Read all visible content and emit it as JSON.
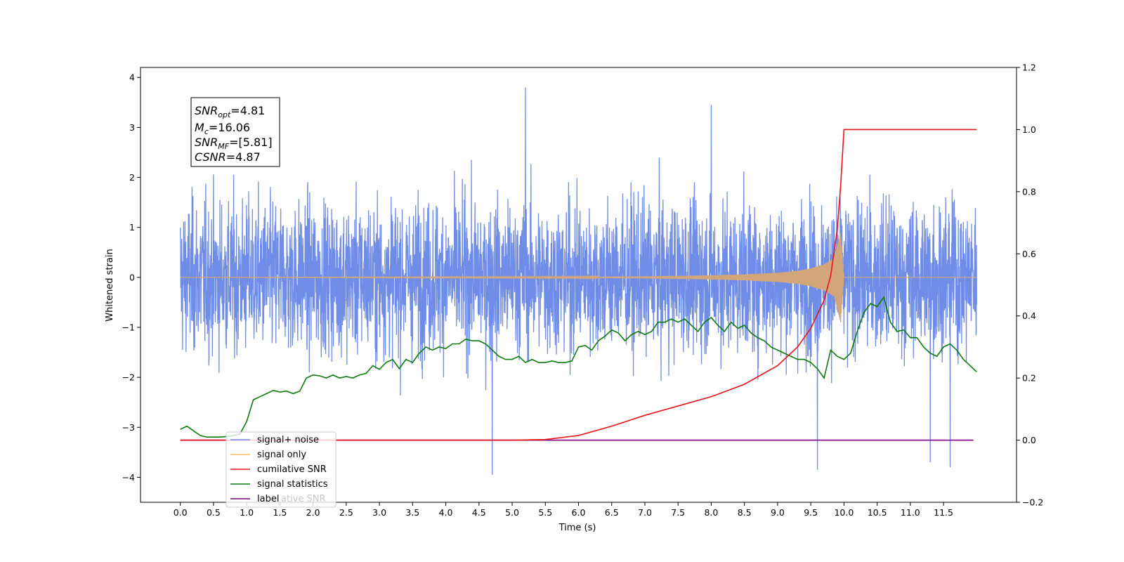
{
  "chart_data": {
    "type": "line",
    "xlabel": "Time (s)",
    "ylabel": "Whitened strain",
    "xlim": [
      -0.6,
      12.6
    ],
    "ylim": [
      -4.5,
      4.2
    ],
    "y2lim": [
      -0.2,
      1.2
    ],
    "x_ticks": [
      "0.0",
      "0.5",
      "1.0",
      "1.5",
      "2.0",
      "2.5",
      "3.0",
      "3.5",
      "4.0",
      "4.5",
      "5.0",
      "5.5",
      "6.0",
      "6.5",
      "7.0",
      "7.5",
      "8.0",
      "8.5",
      "9.0",
      "9.5",
      "10.0",
      "10.5",
      "11.0",
      "11.5"
    ],
    "y_ticks": [
      "4",
      "3",
      "2",
      "1",
      "0",
      "−1",
      "−2",
      "−3",
      "−4"
    ],
    "y2_ticks": [
      "1.2",
      "1.0",
      "0.8",
      "0.6",
      "0.4",
      "0.2",
      "0.0",
      "−0.2"
    ],
    "grid": false,
    "legend_position": "lower-left",
    "legend": {
      "entries": [
        "signal+ noise",
        "signal only",
        "cumilative SNR",
        "signal statistics",
        "label"
      ],
      "overlap_text": "ative SNR"
    },
    "annotation": {
      "line1": {
        "main": "SNR",
        "sub": "opt",
        "value": "=4.81"
      },
      "line2": {
        "main": "M",
        "sub": "c",
        "value": "=16.06"
      },
      "line3": {
        "main": "SNR",
        "sub": "MF",
        "value": "=[5.81]"
      },
      "line4": {
        "main": "CSNR",
        "value": "=4.87"
      }
    },
    "series": [
      {
        "name": "signal+ noise",
        "axis": "left",
        "x_range": [
          0.0,
          12.0
        ],
        "typical_range": [
          -1.7,
          1.7
        ],
        "extremes": [
          {
            "x": 5.2,
            "y": 3.8
          },
          {
            "x": 4.7,
            "y": -3.95
          },
          {
            "x": 11.6,
            "y": -3.8
          },
          {
            "x": 11.3,
            "y": -3.7
          },
          {
            "x": 9.6,
            "y": -3.85
          },
          {
            "x": 8.0,
            "y": 3.45
          }
        ],
        "color": "#6f8de6"
      },
      {
        "name": "signal only",
        "axis": "left",
        "x": [
          0.0,
          6.0,
          7.0,
          8.0,
          8.5,
          9.0,
          9.3,
          9.5,
          9.7,
          9.85,
          9.95,
          10.0,
          12.0
        ],
        "envelope": [
          0.0,
          0.01,
          0.02,
          0.04,
          0.06,
          0.09,
          0.13,
          0.18,
          0.26,
          0.38,
          0.9,
          0.0,
          0.0
        ],
        "color": "#d2a679"
      },
      {
        "name": "cumilative SNR",
        "axis": "right",
        "x": [
          0.0,
          5.0,
          5.5,
          6.0,
          6.5,
          7.0,
          7.5,
          8.0,
          8.5,
          9.0,
          9.3,
          9.5,
          9.7,
          9.8,
          9.9,
          9.95,
          10.0,
          12.0
        ],
        "y": [
          0.0,
          0.0,
          0.002,
          0.015,
          0.045,
          0.08,
          0.11,
          0.14,
          0.18,
          0.24,
          0.3,
          0.36,
          0.45,
          0.53,
          0.68,
          0.82,
          1.0,
          1.0
        ],
        "color": "#e8141b"
      },
      {
        "name": "signal statistics",
        "axis": "right",
        "x": [
          0.0,
          0.1,
          0.2,
          0.3,
          0.4,
          0.5,
          0.6,
          0.7,
          0.8,
          0.9,
          1.0,
          1.1,
          1.2,
          1.3,
          1.4,
          1.5,
          1.6,
          1.7,
          1.8,
          1.9,
          2.0,
          2.1,
          2.2,
          2.3,
          2.4,
          2.5,
          2.6,
          2.7,
          2.8,
          2.9,
          3.0,
          3.1,
          3.2,
          3.3,
          3.4,
          3.5,
          3.6,
          3.7,
          3.8,
          3.9,
          4.0,
          4.1,
          4.2,
          4.3,
          4.4,
          4.5,
          4.6,
          4.7,
          4.8,
          4.9,
          5.0,
          5.1,
          5.2,
          5.3,
          5.4,
          5.5,
          5.6,
          5.7,
          5.8,
          5.9,
          6.0,
          6.1,
          6.2,
          6.3,
          6.4,
          6.5,
          6.6,
          6.7,
          6.8,
          6.9,
          7.0,
          7.1,
          7.2,
          7.3,
          7.4,
          7.5,
          7.6,
          7.7,
          7.8,
          7.9,
          8.0,
          8.1,
          8.2,
          8.3,
          8.4,
          8.5,
          8.6,
          8.7,
          8.8,
          8.9,
          9.0,
          9.1,
          9.2,
          9.3,
          9.4,
          9.5,
          9.6,
          9.7,
          9.8,
          9.9,
          10.0,
          10.1,
          10.2,
          10.3,
          10.4,
          10.5,
          10.6,
          10.7,
          10.8,
          10.9,
          11.0,
          11.1,
          11.2,
          11.3,
          11.4,
          11.5,
          11.6,
          11.7,
          11.8,
          11.9,
          12.0
        ],
        "y": [
          0.035,
          0.045,
          0.03,
          0.015,
          0.01,
          0.01,
          0.01,
          0.012,
          0.015,
          0.02,
          0.06,
          0.13,
          0.14,
          0.15,
          0.16,
          0.155,
          0.158,
          0.15,
          0.158,
          0.2,
          0.21,
          0.207,
          0.2,
          0.21,
          0.2,
          0.205,
          0.2,
          0.21,
          0.215,
          0.24,
          0.228,
          0.25,
          0.26,
          0.23,
          0.26,
          0.25,
          0.28,
          0.3,
          0.29,
          0.3,
          0.295,
          0.31,
          0.31,
          0.325,
          0.32,
          0.32,
          0.31,
          0.29,
          0.27,
          0.26,
          0.26,
          0.27,
          0.25,
          0.26,
          0.25,
          0.25,
          0.255,
          0.25,
          0.25,
          0.255,
          0.3,
          0.305,
          0.29,
          0.32,
          0.335,
          0.355,
          0.345,
          0.32,
          0.34,
          0.35,
          0.34,
          0.35,
          0.38,
          0.38,
          0.39,
          0.38,
          0.39,
          0.37,
          0.35,
          0.38,
          0.395,
          0.37,
          0.35,
          0.38,
          0.36,
          0.37,
          0.345,
          0.33,
          0.32,
          0.3,
          0.29,
          0.28,
          0.27,
          0.26,
          0.26,
          0.25,
          0.23,
          0.2,
          0.29,
          0.27,
          0.26,
          0.28,
          0.35,
          0.41,
          0.44,
          0.43,
          0.46,
          0.38,
          0.35,
          0.355,
          0.33,
          0.33,
          0.3,
          0.28,
          0.27,
          0.3,
          0.31,
          0.29,
          0.26,
          0.24,
          0.22
        ],
        "color": "#0e7a0e"
      },
      {
        "name": "label",
        "axis": "right",
        "x": [
          0.0,
          11.95
        ],
        "y": [
          0.0,
          0.0
        ],
        "color": "#800080"
      }
    ]
  }
}
